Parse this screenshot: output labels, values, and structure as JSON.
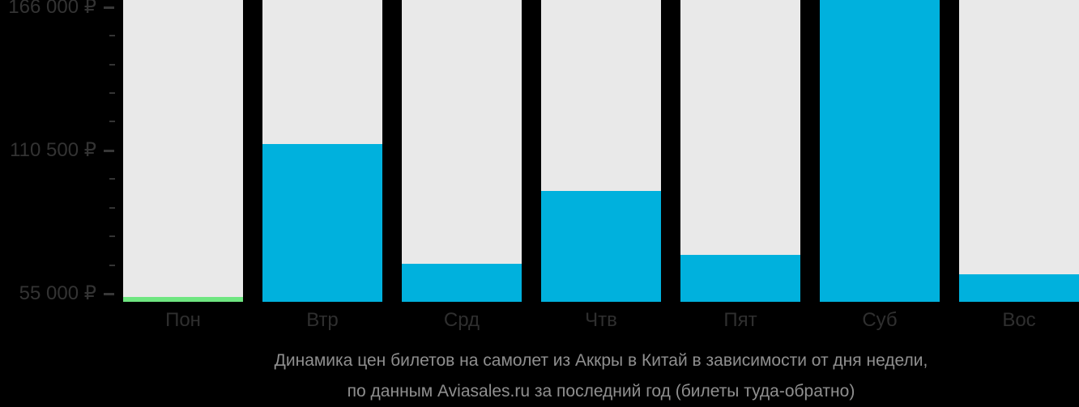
{
  "chart_data": {
    "type": "bar",
    "title": "Динамика цен билетов на самолет из Аккры в Китай в зависимости от дня недели,",
    "subtitle": "по данным Aviasales.ru за последний год (билеты туда-обратно)",
    "categories": [
      "Пон",
      "Втр",
      "Срд",
      "Чтв",
      "Пят",
      "Суб",
      "Вос"
    ],
    "values": [
      53700,
      113000,
      66600,
      94800,
      70100,
      169000,
      62500
    ],
    "bar_colors": [
      "#6fe681",
      "#00b1dd",
      "#00b1dd",
      "#00b1dd",
      "#00b1dd",
      "#00b1dd",
      "#00b1dd"
    ],
    "xlabel": "",
    "ylabel": "",
    "y_axis": {
      "major_ticks": [
        {
          "label": "166 000 ₽",
          "value": 166000
        },
        {
          "label": "110 500 ₽",
          "value": 110500
        },
        {
          "label": "55 000 ₽",
          "value": 55000
        }
      ],
      "minor_ticks_per_interval": 4,
      "minor_step_rub": 11100,
      "ylim": [
        51900,
        168700
      ]
    },
    "legend_position": "none",
    "grid": "off",
    "colors": {
      "background": "#000000",
      "column_backdrop": "#e9e9e9",
      "bar_blue": "#00b1dd",
      "bar_green_min": "#6fe681",
      "axis_text": "#333333",
      "day_label_text": "#2f2f2f",
      "caption_text": "#8f8f8f"
    }
  }
}
